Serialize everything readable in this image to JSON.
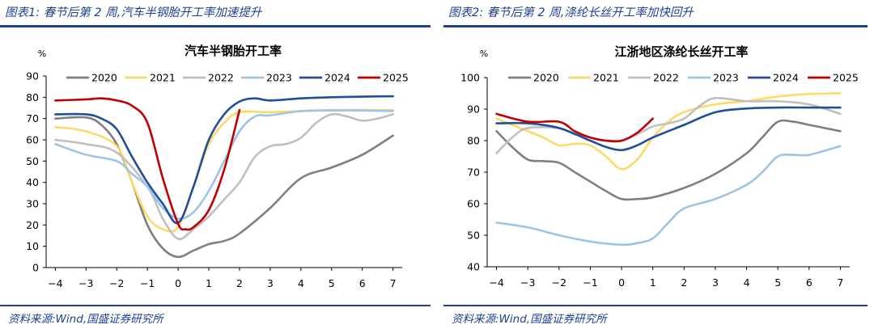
{
  "figures": [
    {
      "caption": "图表1:  春节后第 2 周,汽车半钢胎开工率加速提升",
      "source": "资料来源:Wind,国盛证券研究所",
      "chart_data": {
        "type": "line",
        "title": "汽车半钢胎开工率",
        "ylabel": "%",
        "xlabel": "",
        "x": [
          -4,
          -3,
          -2,
          -1,
          0,
          1,
          2,
          3,
          4,
          5,
          6,
          7
        ],
        "x_tick_labels": [
          "−4",
          "−3",
          "−2",
          "−1",
          "0",
          "1",
          "2",
          "3",
          "4",
          "5",
          "6",
          "7"
        ],
        "xlim": [
          -4.3,
          7.3
        ],
        "ylim": [
          0,
          90
        ],
        "y_ticks": [
          0,
          10,
          20,
          30,
          40,
          50,
          60,
          70,
          80,
          90
        ],
        "legend_position": "top",
        "series": [
          {
            "name": "2020",
            "color": "#7f7f7f",
            "points": [
              [
                -4,
                70
              ],
              [
                -3,
                70.5
              ],
              [
                -2.5,
                67
              ],
              [
                -2,
                58
              ],
              [
                -1.5,
                40
              ],
              [
                -1,
                20
              ],
              [
                -0.5,
                9
              ],
              [
                0,
                5
              ],
              [
                0.5,
                8
              ],
              [
                1,
                11
              ],
              [
                1.5,
                12.5
              ],
              [
                2,
                16
              ],
              [
                3,
                28
              ],
              [
                4,
                42
              ],
              [
                5,
                47
              ],
              [
                6,
                53
              ],
              [
                7,
                62
              ]
            ]
          },
          {
            "name": "2021",
            "color": "#ffd966",
            "points": [
              [
                -4,
                66
              ],
              [
                -3,
                64
              ],
              [
                -2,
                57
              ],
              [
                -1.5,
                40
              ],
              [
                -1,
                24
              ],
              [
                -0.5,
                18
              ],
              [
                0,
                19
              ],
              [
                0.5,
                38
              ],
              [
                1,
                58
              ],
              [
                1.5,
                68
              ],
              [
                2,
                73
              ],
              [
                3,
                73
              ],
              [
                4,
                73.5
              ],
              [
                5,
                74
              ],
              [
                6,
                74
              ],
              [
                7,
                74
              ]
            ]
          },
          {
            "name": "2022",
            "color": "#bfbfbf",
            "points": [
              [
                -4,
                60
              ],
              [
                -3,
                58
              ],
              [
                -2,
                54
              ],
              [
                -1,
                38
              ],
              [
                -0.5,
                23
              ],
              [
                0,
                13.5
              ],
              [
                0.5,
                18
              ],
              [
                1,
                24
              ],
              [
                1.5,
                32
              ],
              [
                2,
                40
              ],
              [
                2.5,
                52
              ],
              [
                3,
                57
              ],
              [
                3.5,
                58
              ],
              [
                4,
                61
              ],
              [
                4.5,
                68
              ],
              [
                5,
                72
              ],
              [
                5.5,
                71
              ],
              [
                6,
                69
              ],
              [
                6.5,
                70
              ],
              [
                7,
                72
              ]
            ]
          },
          {
            "name": "2023",
            "color": "#9dc3e6",
            "points": [
              [
                -4,
                58
              ],
              [
                -3,
                53
              ],
              [
                -2,
                50
              ],
              [
                -1.5,
                44
              ],
              [
                -1,
                38
              ],
              [
                -0.5,
                28
              ],
              [
                0,
                23
              ],
              [
                0.5,
                26
              ],
              [
                1,
                36
              ],
              [
                1.5,
                50
              ],
              [
                2,
                64
              ],
              [
                2.5,
                71
              ],
              [
                3,
                71.5
              ],
              [
                4,
                73.5
              ],
              [
                5,
                73.8
              ],
              [
                6,
                73.8
              ],
              [
                7,
                73.5
              ]
            ]
          },
          {
            "name": "2024",
            "color": "#1f4e9c",
            "points": [
              [
                -4,
                72
              ],
              [
                -3,
                72
              ],
              [
                -2.5,
                70
              ],
              [
                -2,
                65
              ],
              [
                -1.5,
                52
              ],
              [
                -1,
                40
              ],
              [
                -0.5,
                30
              ],
              [
                0,
                21
              ],
              [
                0.5,
                38
              ],
              [
                1,
                60
              ],
              [
                1.5,
                72
              ],
              [
                2,
                78
              ],
              [
                2.5,
                79.5
              ],
              [
                3,
                78.5
              ],
              [
                4,
                79.5
              ],
              [
                5,
                80
              ],
              [
                6,
                80.3
              ],
              [
                7,
                80.5
              ]
            ]
          },
          {
            "name": "2025",
            "color": "#c00000",
            "points": [
              [
                -4,
                78.5
              ],
              [
                -3,
                79
              ],
              [
                -2.5,
                79.5
              ],
              [
                -2,
                78.5
              ],
              [
                -1.5,
                76
              ],
              [
                -1,
                68
              ],
              [
                -0.5,
                42
              ],
              [
                0,
                20.5
              ],
              [
                0.25,
                18
              ],
              [
                0.5,
                19
              ],
              [
                1,
                27
              ],
              [
                1.5,
                46
              ],
              [
                2,
                74
              ]
            ]
          }
        ]
      }
    },
    {
      "caption": "图表2:  春节后第 2 周,涤纶长丝开工率加快回升",
      "source": "资料来源:Wind,国盛证券研究所",
      "chart_data": {
        "type": "line",
        "title": "江浙地区涤纶长丝开工率",
        "ylabel": "%",
        "xlabel": "",
        "x": [
          -4,
          -3,
          -2,
          -1,
          0,
          1,
          2,
          3,
          4,
          5,
          6,
          7
        ],
        "x_tick_labels": [
          "−4",
          "−3",
          "−2",
          "−1",
          "0",
          "1",
          "2",
          "3",
          "4",
          "5",
          "6",
          "7"
        ],
        "xlim": [
          -4.3,
          7.3
        ],
        "ylim": [
          40,
          100
        ],
        "y_ticks": [
          40,
          50,
          60,
          70,
          80,
          90,
          100
        ],
        "legend_position": "top",
        "series": [
          {
            "name": "2020",
            "color": "#7f7f7f",
            "points": [
              [
                -4,
                83
              ],
              [
                -3.5,
                78
              ],
              [
                -3,
                74
              ],
              [
                -2.5,
                73.5
              ],
              [
                -2,
                73
              ],
              [
                -1.5,
                70
              ],
              [
                -1,
                67
              ],
              [
                -0.5,
                64
              ],
              [
                0,
                61.5
              ],
              [
                0.5,
                61.5
              ],
              [
                1,
                62
              ],
              [
                2,
                65
              ],
              [
                3,
                69.5
              ],
              [
                4,
                76
              ],
              [
                4.5,
                81
              ],
              [
                5,
                86
              ],
              [
                5.5,
                86
              ],
              [
                6,
                85
              ],
              [
                7,
                83
              ]
            ]
          },
          {
            "name": "2021",
            "color": "#ffd966",
            "points": [
              [
                -4,
                87
              ],
              [
                -3,
                83
              ],
              [
                -2.5,
                81
              ],
              [
                -2,
                78.5
              ],
              [
                -1.5,
                79
              ],
              [
                -1,
                78.5
              ],
              [
                -0.5,
                75
              ],
              [
                0,
                71
              ],
              [
                0.5,
                74
              ],
              [
                1,
                81
              ],
              [
                1.5,
                86
              ],
              [
                2,
                89
              ],
              [
                3,
                91.5
              ],
              [
                4,
                92.5
              ],
              [
                5,
                94
              ],
              [
                6,
                94.8
              ],
              [
                7,
                95
              ]
            ]
          },
          {
            "name": "2022",
            "color": "#bfbfbf",
            "points": [
              [
                -4,
                76
              ],
              [
                -3.5,
                81
              ],
              [
                -3,
                84
              ],
              [
                -2,
                84
              ],
              [
                -1.5,
                82
              ],
              [
                -1,
                81
              ],
              [
                -0.5,
                80
              ],
              [
                0,
                80
              ],
              [
                0.5,
                82
              ],
              [
                1,
                84.5
              ],
              [
                1.5,
                85.5
              ],
              [
                2,
                87
              ],
              [
                2.5,
                91
              ],
              [
                3,
                93.5
              ],
              [
                4,
                92.5
              ],
              [
                5,
                92.5
              ],
              [
                6,
                91.5
              ],
              [
                7,
                88.5
              ]
            ]
          },
          {
            "name": "2023",
            "color": "#9dc3e6",
            "points": [
              [
                -4,
                54
              ],
              [
                -3,
                52.5
              ],
              [
                -2,
                50
              ],
              [
                -1,
                48
              ],
              [
                0,
                47
              ],
              [
                0.5,
                47.5
              ],
              [
                1,
                49
              ],
              [
                1.5,
                54
              ],
              [
                2,
                58.5
              ],
              [
                3,
                61.5
              ],
              [
                4,
                66
              ],
              [
                4.5,
                70
              ],
              [
                5,
                75
              ],
              [
                5.5,
                75.5
              ],
              [
                6,
                75.5
              ],
              [
                7,
                78.3
              ]
            ]
          },
          {
            "name": "2024",
            "color": "#1f4e9c",
            "points": [
              [
                -4,
                85.5
              ],
              [
                -3,
                85.5
              ],
              [
                -2,
                84
              ],
              [
                -1,
                80
              ],
              [
                -0.5,
                78
              ],
              [
                0,
                77
              ],
              [
                0.5,
                78.5
              ],
              [
                1,
                81
              ],
              [
                2,
                85
              ],
              [
                3,
                89
              ],
              [
                4,
                90.2
              ],
              [
                5,
                90.5
              ],
              [
                6,
                90.5
              ],
              [
                7,
                90.5
              ]
            ]
          },
          {
            "name": "2025",
            "color": "#c00000",
            "points": [
              [
                -4,
                88.5
              ],
              [
                -3,
                86
              ],
              [
                -2,
                86
              ],
              [
                -1.5,
                83
              ],
              [
                -1,
                81
              ],
              [
                -0.5,
                80
              ],
              [
                0,
                80
              ],
              [
                0.5,
                82.5
              ],
              [
                1,
                87
              ]
            ]
          }
        ]
      }
    }
  ]
}
